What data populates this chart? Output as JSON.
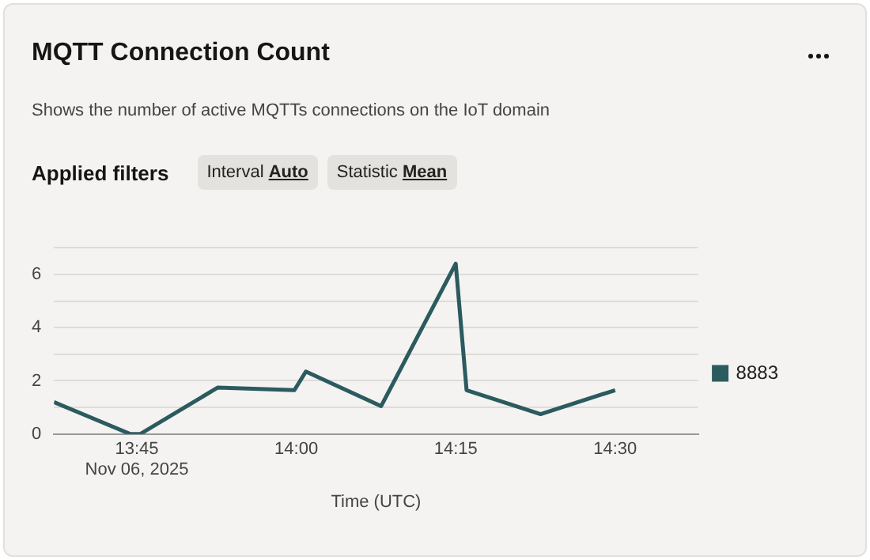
{
  "chart_data": {
    "type": "line",
    "title": "MQTT Connection Count",
    "subtitle": "Shows the number of active MQTTs connections on the IoT domain",
    "xlabel": "Time (UTC)",
    "annotations": [
      "Applied filters",
      "Interval Auto",
      "Statistic Mean"
    ],
    "x": [
      13.62,
      13.74,
      13.755,
      13.877,
      13.997,
      14.015,
      14.133,
      14.25,
      14.267,
      14.383,
      14.5
    ],
    "series": [
      {
        "name": "8883",
        "color": "#2b5a5f",
        "values": [
          1.2,
          0,
          0,
          1.75,
          1.65,
          2.35,
          1.05,
          6.4,
          1.65,
          0.75,
          1.65
        ]
      }
    ],
    "xlim": [
      13.62,
      14.63
    ],
    "xticks": [
      {
        "value": 13.75,
        "label": "13:45\nNov 06, 2025"
      },
      {
        "value": 14,
        "label": "14:00"
      },
      {
        "value": 14.25,
        "label": "14:15"
      },
      {
        "value": 14.5,
        "label": "14:30"
      }
    ],
    "ylim": [
      0,
      7
    ],
    "yticks": [
      0,
      {
        "value": 1,
        "label": null
      },
      2,
      {
        "value": 3,
        "label": null
      },
      4,
      {
        "value": 5,
        "label": null
      },
      6,
      {
        "value": 7,
        "label": null
      }
    ],
    "grid": "y",
    "legend": "right",
    "marker": "none",
    "line_style": "solid"
  }
}
